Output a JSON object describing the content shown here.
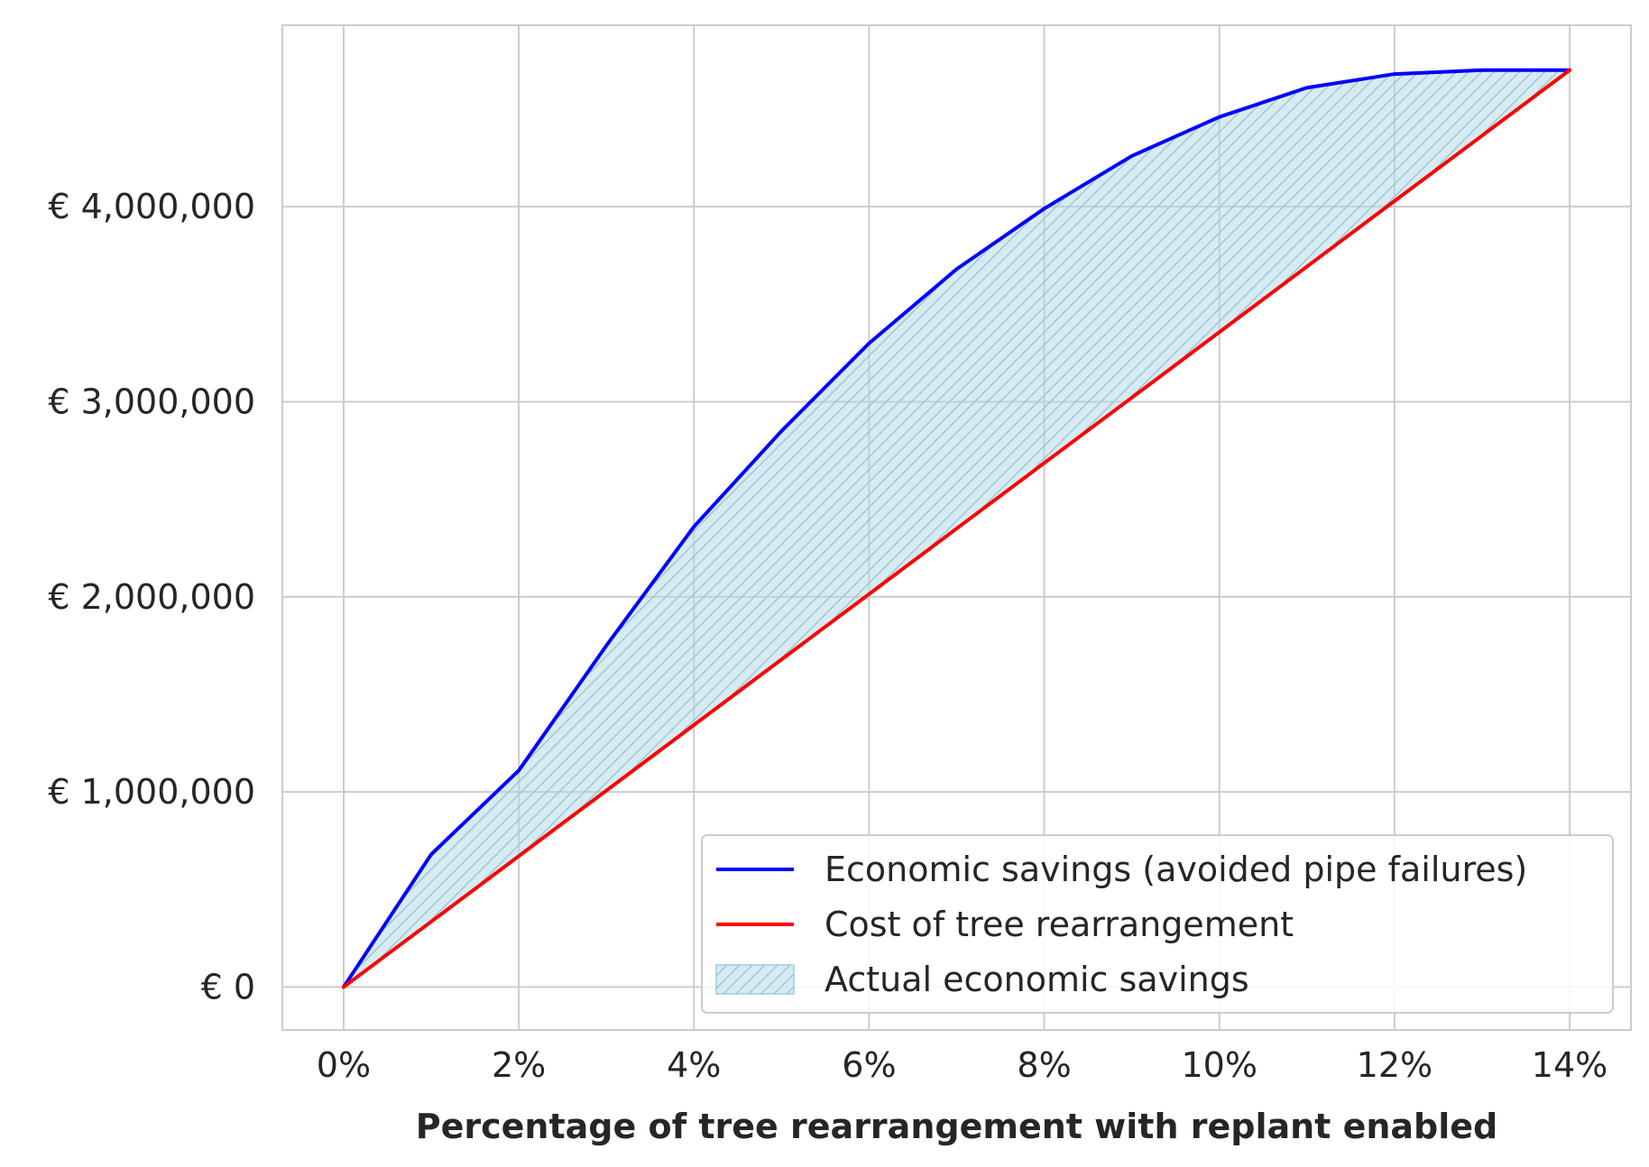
{
  "chart_data": {
    "type": "line",
    "title": "",
    "xlabel": "Percentage of tree rearrangement with replant enabled",
    "ylabel": "",
    "x": [
      0,
      1,
      2,
      3,
      4,
      5,
      6,
      7,
      8,
      9,
      10,
      11,
      12,
      13,
      14
    ],
    "xlim": [
      -0.7,
      14.7
    ],
    "ylim": [
      -220000,
      4930000
    ],
    "xticks": [
      0,
      2,
      4,
      6,
      8,
      10,
      12,
      14
    ],
    "xtick_labels": [
      "0%",
      "2%",
      "4%",
      "6%",
      "8%",
      "10%",
      "12%",
      "14%"
    ],
    "yticks": [
      0,
      1000000,
      2000000,
      3000000,
      4000000
    ],
    "ytick_labels": [
      "€ 0",
      "€ 1,000,000",
      "€ 2,000,000",
      "€ 3,000,000",
      "€ 4,000,000"
    ],
    "grid": true,
    "legend_position": "bottom-right",
    "series": [
      {
        "name": "Economic savings (avoided pipe failures)",
        "color": "#0000ff",
        "values": [
          0,
          680000,
          1110000,
          1750000,
          2360000,
          2850000,
          3300000,
          3680000,
          3990000,
          4260000,
          4460000,
          4610000,
          4680000,
          4700000,
          4700000
        ]
      },
      {
        "name": "Cost of tree rearrangement",
        "color": "#ff0000",
        "values": [
          0,
          335000,
          671000,
          1007000,
          1343000,
          1679000,
          2014000,
          2350000,
          2686000,
          3021000,
          3357000,
          3693000,
          4029000,
          4364000,
          4700000
        ]
      }
    ],
    "fill": {
      "name": "Actual economic savings",
      "color": "#add8e6",
      "between": [
        "Economic savings (avoided pipe failures)",
        "Cost of tree rearrangement"
      ],
      "hatch": "//"
    }
  }
}
